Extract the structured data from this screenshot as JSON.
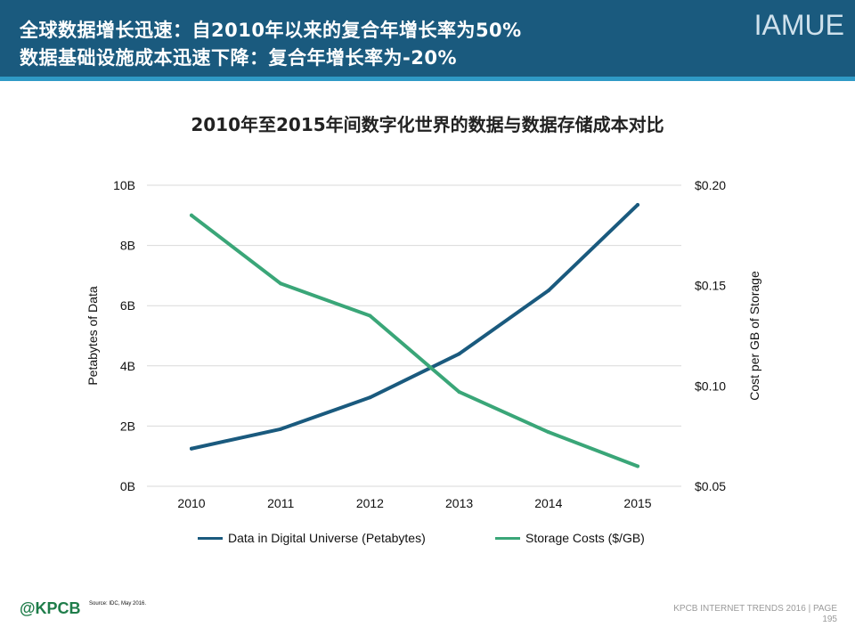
{
  "header": {
    "line1": "全球数据增长迅速：自2010年以来的复合年增长率为50%",
    "line2": "数据基础设施成本迅速下降：复合年增长率为-20%",
    "brand": "IAMUE"
  },
  "colors": {
    "header_bg": "#1a5a7e",
    "header_rule": "#2f9ac6",
    "data_series": "#1a5a7e",
    "cost_series": "#3aa678",
    "gridline": "#d9d9d9"
  },
  "chart_data": {
    "type": "line",
    "title": "2010年至2015年间数字化世界的数据与数据存储成本对比",
    "categories": [
      "2010",
      "2011",
      "2012",
      "2013",
      "2014",
      "2015"
    ],
    "y_left": {
      "label": "Petabytes of Data",
      "range": [
        0,
        10
      ],
      "ticks": [
        0,
        2,
        4,
        6,
        8,
        10
      ],
      "tick_labels": [
        "0B",
        "2B",
        "4B",
        "6B",
        "8B",
        "10B"
      ]
    },
    "y_right": {
      "label": "Cost per GB of Storage",
      "range": [
        0.05,
        0.2
      ],
      "ticks": [
        0.05,
        0.1,
        0.15,
        0.2
      ],
      "tick_labels": [
        "$0.05",
        "$0.10",
        "$0.15",
        "$0.20"
      ]
    },
    "series": [
      {
        "name": "Data in Digital Universe (Petabytes)",
        "axis": "left",
        "color": "#1a5a7e",
        "values": [
          1.25,
          1.9,
          2.95,
          4.4,
          6.5,
          9.35
        ]
      },
      {
        "name": "Storage Costs ($/GB)",
        "axis": "right",
        "color": "#3aa678",
        "values": [
          0.185,
          0.151,
          0.135,
          0.097,
          0.077,
          0.06
        ]
      }
    ],
    "grid": true,
    "legend_position": "bottom"
  },
  "footer": {
    "logo": "@KPCB",
    "source": "Source: IDC, May 2016.",
    "trends": "KPCB INTERNET TRENDS 2016   |   PAGE",
    "page": "195"
  }
}
